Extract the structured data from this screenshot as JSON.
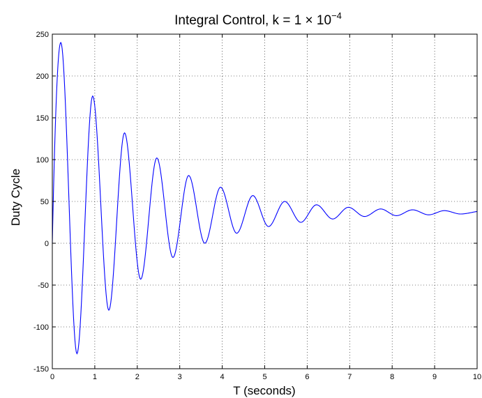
{
  "chart_data": {
    "type": "line",
    "title": "Integral Control, k = 1 × 10",
    "title_exponent": "−4",
    "xlabel": "T (seconds)",
    "ylabel": "Duty Cycle",
    "xlim": [
      0,
      10
    ],
    "ylim": [
      -150,
      250
    ],
    "xticks": [
      0,
      1,
      2,
      3,
      4,
      5,
      6,
      7,
      8,
      9,
      10
    ],
    "xtick_labels": [
      "0",
      "1",
      "2",
      "3",
      "4",
      "5",
      "6",
      "7",
      "8",
      "9",
      "10"
    ],
    "yticks": [
      -150,
      -100,
      -50,
      0,
      50,
      100,
      150,
      200,
      250
    ],
    "ytick_labels": [
      "-150",
      "-100",
      "-50",
      "0",
      "50",
      "100",
      "150",
      "200",
      "250"
    ],
    "grid": true,
    "series_color": "#0000ff",
    "series": [
      {
        "x": [
          0,
          0.2,
          0.58,
          0.95,
          1.33,
          1.7,
          2.08,
          2.46,
          2.84,
          3.21,
          3.59,
          3.96,
          4.34,
          4.72,
          5.09,
          5.47,
          5.85,
          6.22,
          6.6,
          6.97,
          7.35,
          7.73,
          8.1,
          8.48,
          8.86,
          9.23,
          9.61,
          10
        ],
        "y": [
          0,
          240,
          -132,
          176,
          -80,
          132,
          -43,
          102,
          -17,
          81,
          0,
          67,
          12,
          57,
          20,
          50,
          25,
          46,
          29,
          43,
          32,
          41,
          33,
          40,
          34,
          39,
          35,
          38
        ]
      }
    ]
  }
}
